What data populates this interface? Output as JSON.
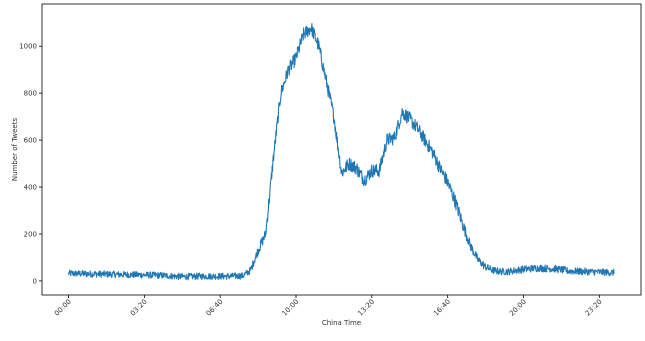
{
  "chart_data": {
    "type": "line",
    "title": "",
    "xlabel": "China Time",
    "ylabel": "Number of Tweets",
    "x_ticks": [
      "00:00",
      "03:20",
      "06:40",
      "10:00",
      "13:20",
      "16:40",
      "20:00",
      "23:20"
    ],
    "x_tick_minutes": [
      0,
      200,
      400,
      600,
      800,
      1000,
      1200,
      1400
    ],
    "xlim_minutes": [
      -70,
      1510
    ],
    "y_ticks": [
      0,
      200,
      400,
      600,
      800,
      1000
    ],
    "ylim": [
      -60,
      1180
    ],
    "grid": false,
    "series": [
      {
        "color": "#1f77b4",
        "noise": 25,
        "x_minutes": [
          0,
          60,
          120,
          180,
          240,
          300,
          360,
          420,
          460,
          480,
          500,
          520,
          540,
          560,
          580,
          600,
          620,
          640,
          660,
          680,
          700,
          720,
          740,
          760,
          780,
          800,
          820,
          840,
          860,
          880,
          900,
          920,
          940,
          960,
          980,
          1000,
          1020,
          1040,
          1060,
          1080,
          1100,
          1120,
          1140,
          1160,
          1180,
          1200,
          1240,
          1280,
          1300,
          1320,
          1360,
          1400,
          1439
        ],
        "values": [
          32,
          30,
          28,
          26,
          24,
          18,
          20,
          20,
          22,
          45,
          130,
          200,
          520,
          800,
          900,
          950,
          1050,
          1080,
          1000,
          850,
          700,
          460,
          500,
          480,
          430,
          470,
          470,
          600,
          610,
          720,
          690,
          650,
          600,
          550,
          480,
          420,
          340,
          240,
          150,
          90,
          60,
          45,
          40,
          40,
          45,
          50,
          55,
          52,
          48,
          42,
          40,
          38,
          35
        ]
      }
    ]
  }
}
